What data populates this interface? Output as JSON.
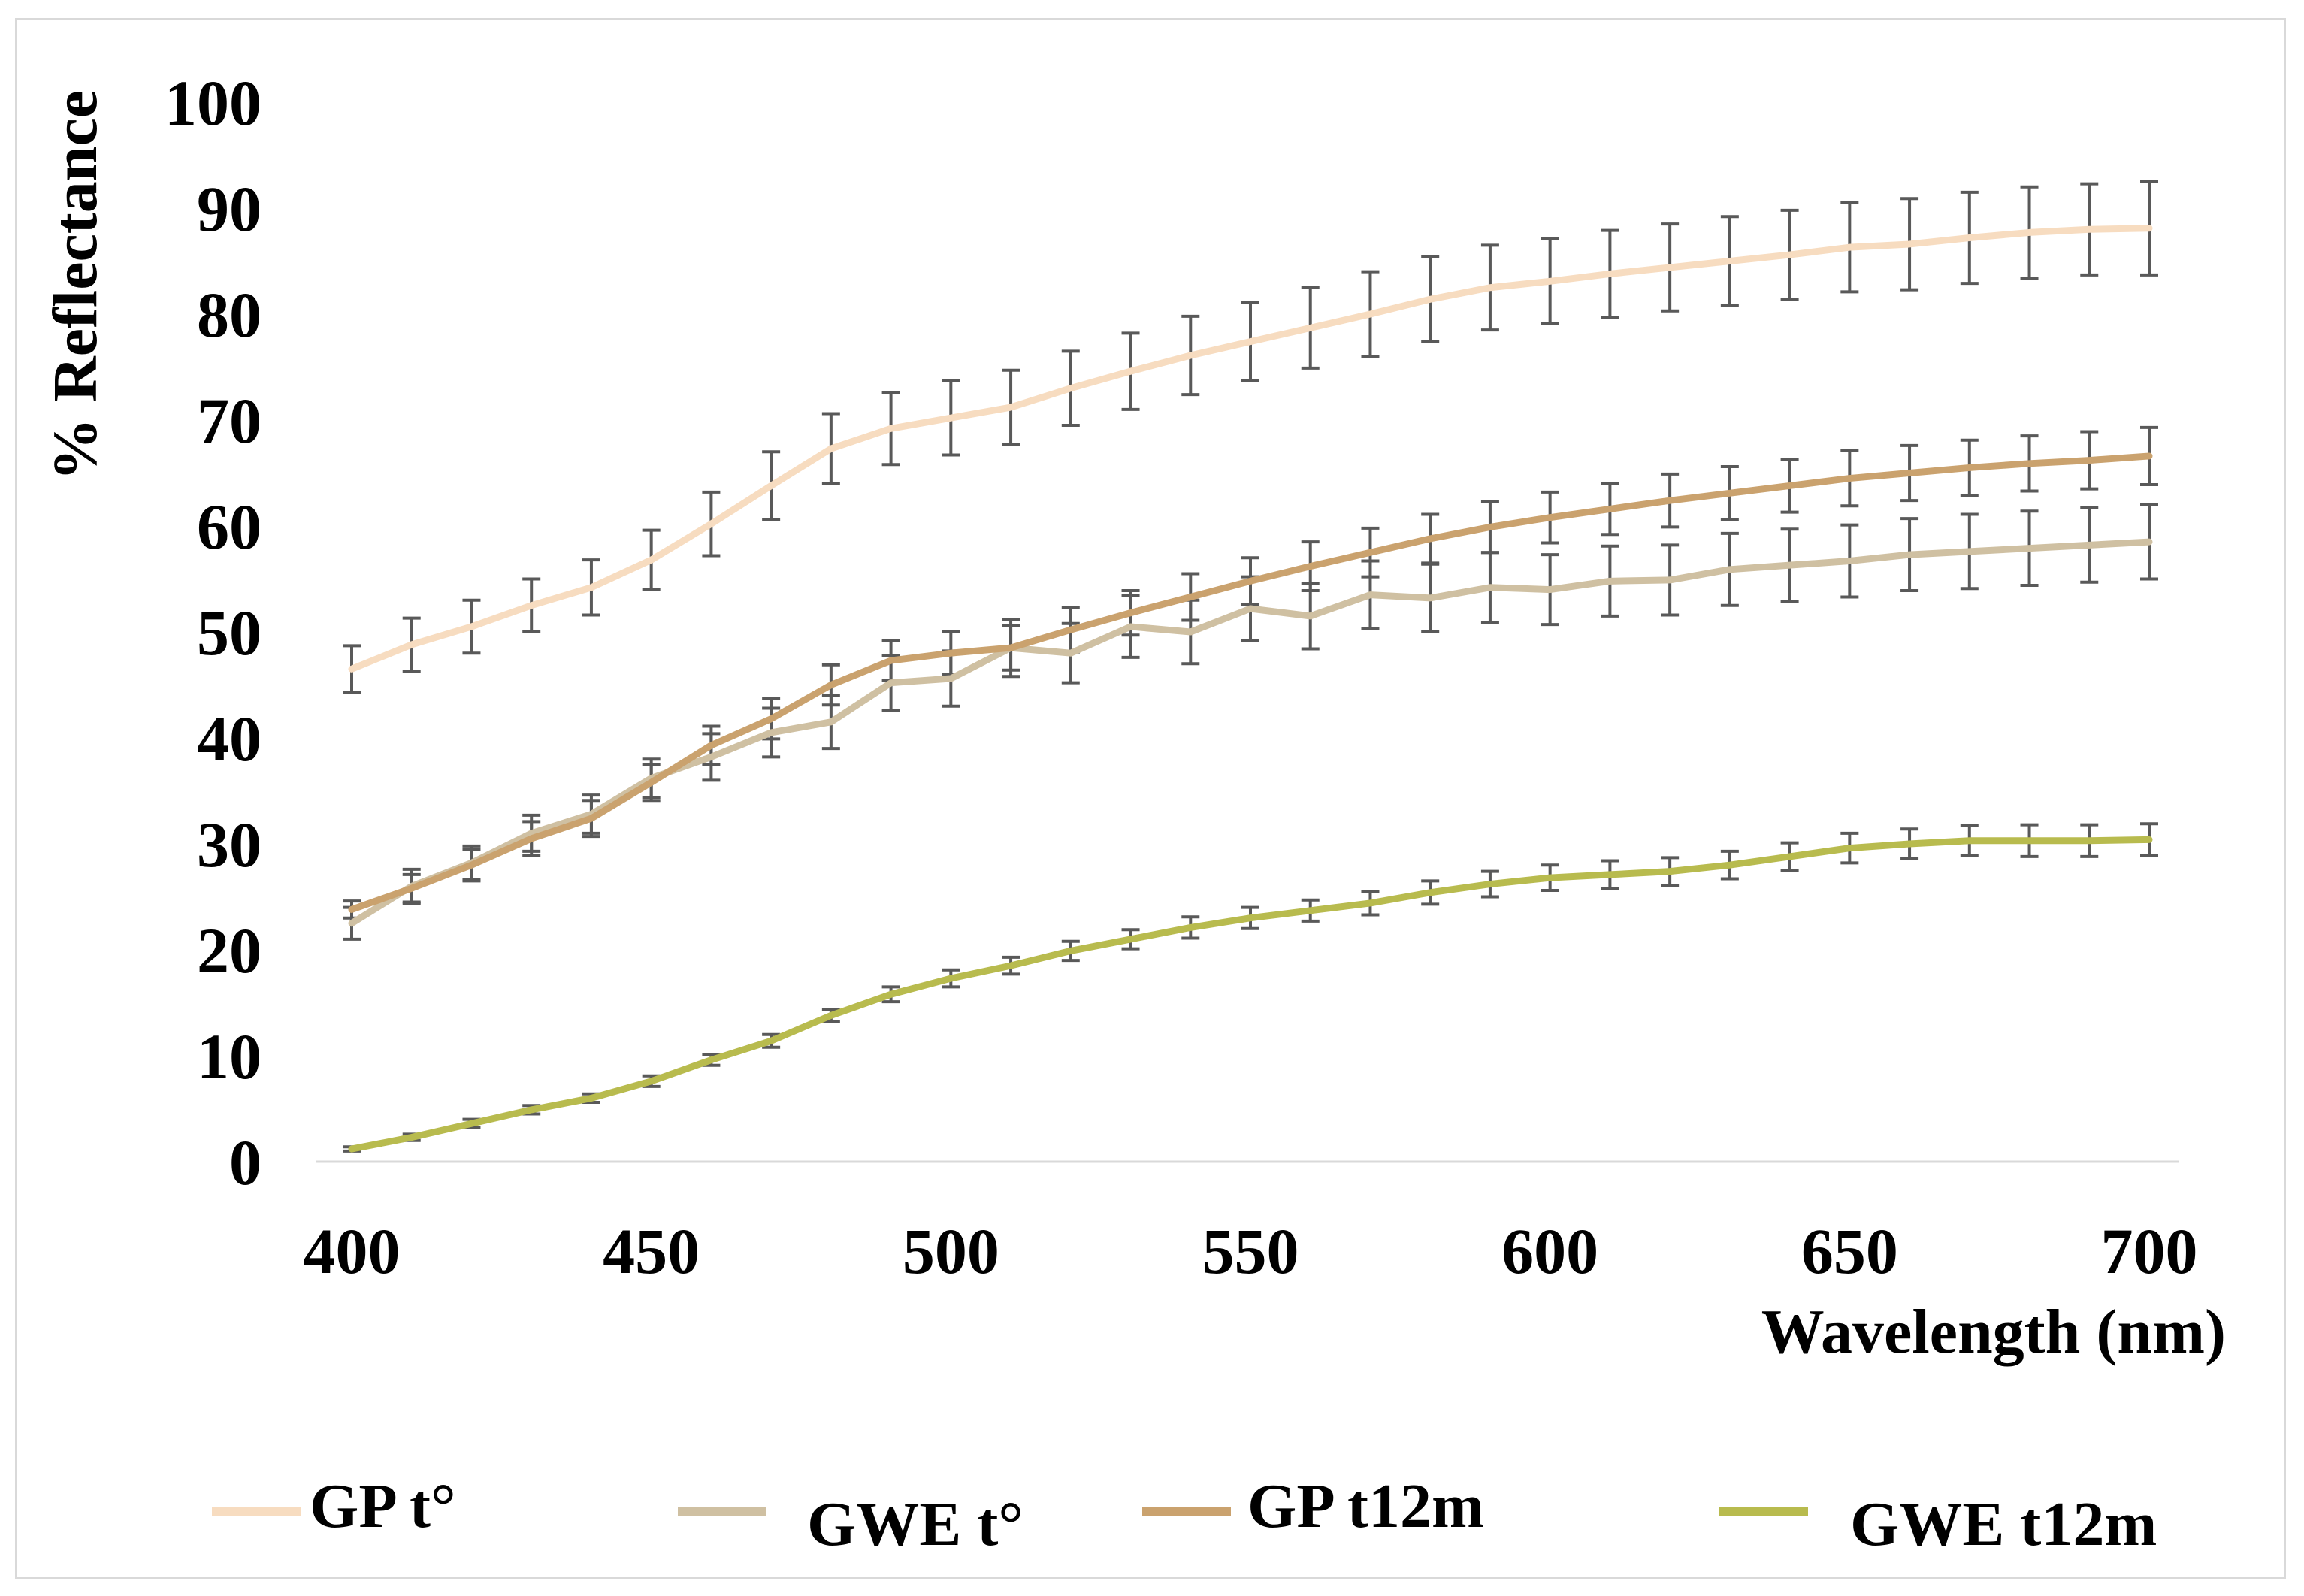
{
  "chart_data": {
    "type": "line",
    "title": "",
    "xlabel": "Wavelength (nm)",
    "ylabel": "% Reflectance",
    "xlim": [
      400,
      700
    ],
    "ylim": [
      0,
      100
    ],
    "x_ticks": [
      "400",
      "450",
      "500",
      "550",
      "600",
      "650",
      "700"
    ],
    "y_ticks": [
      "0",
      "10",
      "20",
      "30",
      "40",
      "50",
      "60",
      "70",
      "80",
      "90",
      "100"
    ],
    "grid": false,
    "legend_position": "bottom",
    "x": [
      400,
      410,
      420,
      430,
      440,
      450,
      460,
      470,
      480,
      490,
      500,
      510,
      520,
      530,
      540,
      550,
      560,
      570,
      580,
      590,
      600,
      610,
      620,
      630,
      640,
      650,
      660,
      670,
      680,
      690,
      700
    ],
    "series": [
      {
        "name": "GP t°",
        "color": "#f7dcc0",
        "values": [
          46.5,
          48.8,
          50.5,
          52.5,
          54.2,
          56.8,
          60.2,
          63.8,
          67.3,
          69.2,
          70.2,
          71.2,
          73.0,
          74.6,
          76.1,
          77.4,
          78.7,
          80.0,
          81.4,
          82.5,
          83.1,
          83.8,
          84.4,
          85.0,
          85.6,
          86.3,
          86.6,
          87.2,
          87.7,
          88.0,
          88.1
        ],
        "errors": [
          2.2,
          2.5,
          2.5,
          2.5,
          2.6,
          2.8,
          3.0,
          3.2,
          3.3,
          3.4,
          3.5,
          3.5,
          3.5,
          3.6,
          3.7,
          3.7,
          3.8,
          4.0,
          4.0,
          4.0,
          4.0,
          4.1,
          4.1,
          4.2,
          4.2,
          4.2,
          4.3,
          4.3,
          4.3,
          4.3,
          4.4
        ]
      },
      {
        "name": "GWE t°",
        "color": "#cfc0a2",
        "values": [
          22.5,
          26.0,
          28.2,
          31.0,
          32.8,
          36.2,
          38.2,
          40.5,
          41.5,
          45.2,
          45.6,
          48.5,
          48.0,
          50.5,
          50.0,
          52.2,
          51.5,
          53.5,
          53.2,
          54.2,
          54.0,
          54.8,
          54.9,
          55.9,
          56.3,
          56.7,
          57.3,
          57.6,
          57.9,
          58.2,
          58.5
        ],
        "errors": [
          1.5,
          1.6,
          1.6,
          1.7,
          1.8,
          1.8,
          2.2,
          2.3,
          2.5,
          2.6,
          2.6,
          2.7,
          2.8,
          2.9,
          3.0,
          3.0,
          3.1,
          3.2,
          3.2,
          3.3,
          3.3,
          3.3,
          3.3,
          3.4,
          3.4,
          3.4,
          3.4,
          3.5,
          3.5,
          3.5,
          3.5
        ]
      },
      {
        "name": "GP t12m",
        "color": "#caa26e",
        "values": [
          23.8,
          25.8,
          28.0,
          30.5,
          32.4,
          35.8,
          39.3,
          41.8,
          45.0,
          47.3,
          48.0,
          48.5,
          50.2,
          51.8,
          53.3,
          54.8,
          56.2,
          57.5,
          58.8,
          59.9,
          60.8,
          61.6,
          62.4,
          63.1,
          63.8,
          64.5,
          65.0,
          65.5,
          65.9,
          66.2,
          66.6
        ],
        "errors": [
          0.8,
          1.3,
          1.5,
          1.6,
          1.7,
          1.7,
          1.8,
          1.9,
          1.9,
          1.9,
          2.0,
          2.1,
          2.1,
          2.1,
          2.2,
          2.2,
          2.3,
          2.3,
          2.3,
          2.4,
          2.4,
          2.4,
          2.5,
          2.5,
          2.5,
          2.6,
          2.6,
          2.6,
          2.6,
          2.7,
          2.7
        ]
      },
      {
        "name": "GWE t12m",
        "color": "#b8bb4e",
        "values": [
          1.2,
          2.3,
          3.6,
          4.9,
          6.0,
          7.6,
          9.6,
          11.4,
          13.8,
          15.8,
          17.3,
          18.5,
          19.9,
          21.0,
          22.1,
          23.0,
          23.7,
          24.4,
          25.4,
          26.2,
          26.8,
          27.1,
          27.4,
          28.0,
          28.8,
          29.6,
          30.0,
          30.3,
          30.3,
          30.3,
          30.4
        ],
        "errors": [
          0.2,
          0.3,
          0.4,
          0.4,
          0.4,
          0.5,
          0.5,
          0.6,
          0.6,
          0.7,
          0.8,
          0.8,
          0.9,
          0.9,
          1.0,
          1.0,
          1.0,
          1.1,
          1.1,
          1.2,
          1.2,
          1.3,
          1.3,
          1.3,
          1.3,
          1.4,
          1.4,
          1.4,
          1.5,
          1.5,
          1.5
        ]
      }
    ],
    "error_bar_color": "#595959",
    "axis_color": "#d9d9d9"
  }
}
